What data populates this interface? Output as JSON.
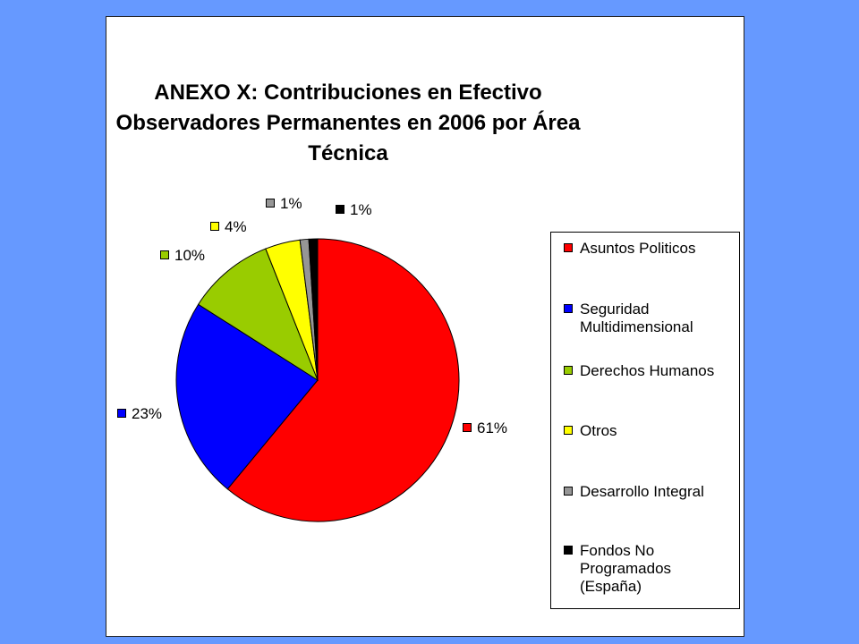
{
  "chart_data": {
    "type": "pie",
    "title_lines": [
      "ANEXO X: Contribuciones en Efectivo",
      "Observadores Permanentes en 2006 por Área",
      "Técnica"
    ],
    "slices": [
      {
        "name": "Asuntos Politicos",
        "value": 61,
        "label": "61%",
        "color": "#ff0000"
      },
      {
        "name": "Seguridad Multidimensional",
        "value": 23,
        "label": "23%",
        "color": "#0000ff"
      },
      {
        "name": "Derechos Humanos",
        "value": 10,
        "label": "10%",
        "color": "#99cc00"
      },
      {
        "name": "Otros",
        "value": 4,
        "label": "4%",
        "color": "#ffff00"
      },
      {
        "name": "Desarrollo Integral",
        "value": 1,
        "label": "1%",
        "color": "#969696"
      },
      {
        "name": "Fondos No Programados (España)",
        "value": 1,
        "label": "1%",
        "color": "#000000"
      }
    ],
    "legend_placement": "right"
  }
}
